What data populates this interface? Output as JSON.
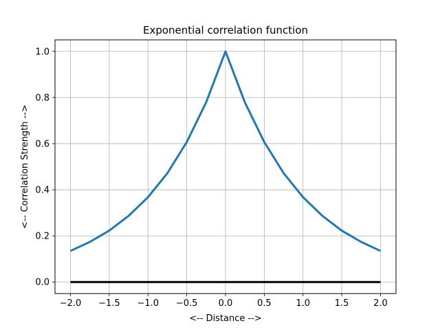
{
  "chart_data": {
    "type": "line",
    "title": "Exponential correlation function",
    "xlabel": "<-- Distance -->",
    "ylabel": "<-- Correlation Strength -->",
    "xlim": [
      -2.2,
      2.2
    ],
    "ylim": [
      -0.05,
      1.05
    ],
    "grid": true,
    "x_ticks": [
      -2.0,
      -1.5,
      -1.0,
      -0.5,
      0.0,
      0.5,
      1.0,
      1.5,
      2.0
    ],
    "x_tick_labels": [
      "−2.0",
      "−1.5",
      "−1.0",
      "−0.5",
      "0.0",
      "0.5",
      "1.0",
      "1.5",
      "2.0"
    ],
    "y_ticks": [
      0.0,
      0.2,
      0.4,
      0.6,
      0.8,
      1.0
    ],
    "y_tick_labels": [
      "0.0",
      "0.2",
      "0.4",
      "0.6",
      "0.8",
      "1.0"
    ],
    "series": [
      {
        "color": "#1f77b4",
        "x": [
          -2.0,
          -1.75,
          -1.5,
          -1.25,
          -1.0,
          -0.75,
          -0.5,
          -0.25,
          0.0,
          0.25,
          0.5,
          0.75,
          1.0,
          1.25,
          1.5,
          1.75,
          2.0
        ],
        "y": [
          0.135,
          0.174,
          0.223,
          0.287,
          0.368,
          0.472,
          0.607,
          0.779,
          1.0,
          0.779,
          0.607,
          0.472,
          0.368,
          0.287,
          0.223,
          0.174,
          0.135
        ]
      },
      {
        "color": "#000000",
        "x": [
          -2.0,
          2.0
        ],
        "y": [
          0.0,
          0.0
        ]
      }
    ]
  }
}
